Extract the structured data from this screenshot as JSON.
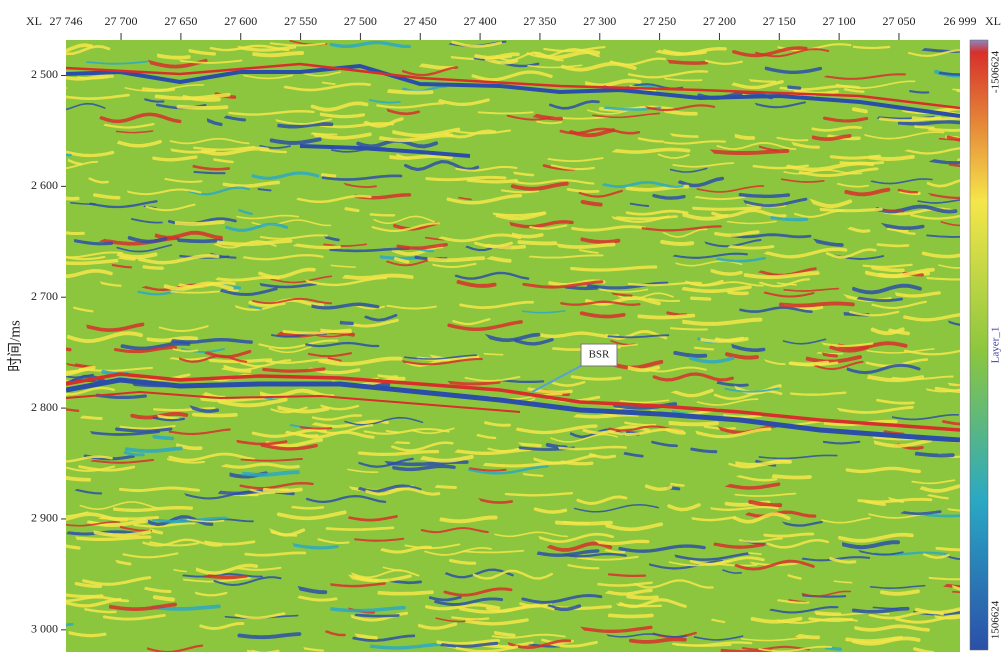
{
  "chart_data": {
    "type": "seismic",
    "x_label": "XL",
    "y_label": "时间/ms",
    "xlim": [
      27746,
      26999
    ],
    "xticks": [
      {
        "value": 27746,
        "label": "27 746"
      },
      {
        "value": 27700,
        "label": "27 700"
      },
      {
        "value": 27650,
        "label": "27 650"
      },
      {
        "value": 27600,
        "label": "27 600"
      },
      {
        "value": 27550,
        "label": "27 550"
      },
      {
        "value": 27500,
        "label": "27 500"
      },
      {
        "value": 27450,
        "label": "27 450"
      },
      {
        "value": 27400,
        "label": "27 400"
      },
      {
        "value": 27350,
        "label": "27 350"
      },
      {
        "value": 27300,
        "label": "27 300"
      },
      {
        "value": 27250,
        "label": "27 250"
      },
      {
        "value": 27200,
        "label": "27 200"
      },
      {
        "value": 27150,
        "label": "27 150"
      },
      {
        "value": 27100,
        "label": "27 100"
      },
      {
        "value": 27050,
        "label": "27 050"
      },
      {
        "value": 26999,
        "label": "26 999"
      }
    ],
    "ylim": [
      2468,
      3020
    ],
    "y_inverted": true,
    "yticks": [
      {
        "value": 2500,
        "label": "2 500"
      },
      {
        "value": 2600,
        "label": "2 600"
      },
      {
        "value": 2700,
        "label": "2 700"
      },
      {
        "value": 2800,
        "label": "2 800"
      },
      {
        "value": 2900,
        "label": "2 900"
      },
      {
        "value": 3000,
        "label": "3 000"
      }
    ],
    "colorbar": {
      "label": "Layer_1",
      "ticks": [
        -1506624,
        1506624
      ],
      "colors": [
        "#8a86c4",
        "#d7302a",
        "#f5e64a",
        "#8cc63f",
        "#2aa8c4",
        "#2b4fa8"
      ]
    },
    "annotations": [
      {
        "text": "BSR"
      }
    ]
  }
}
